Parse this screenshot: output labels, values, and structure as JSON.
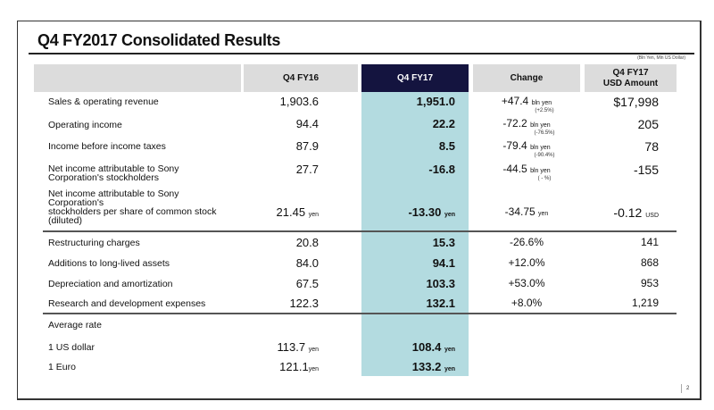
{
  "title": "Q4 FY2017 Consolidated Results",
  "unit_note": "(Bln Yen, Mln US Dollar)",
  "headers": {
    "fy16": "Q4 FY16",
    "fy17": "Q4 FY17",
    "change": "Change",
    "usd_line1": "Q4 FY17",
    "usd_line2": "USD Amount"
  },
  "accent_colors": {
    "header_dark": "#14143f",
    "highlight_column": "#b3dbe0",
    "header_gray": "#dcdcdc"
  },
  "rows": [
    {
      "label": "Sales & operating revenue",
      "fy16": "1,903.6",
      "fy17": "1,951.0",
      "change": "+47.4",
      "change_unit": "bln yen",
      "change_pct": "(+2.5%)",
      "usd": "$17,998"
    },
    {
      "label": "Operating income",
      "fy16": "94.4",
      "fy17": "22.2",
      "change": "-72.2",
      "change_unit": "bln yen",
      "change_pct": "(-76.5%)",
      "usd": "205"
    },
    {
      "label": "Income before income taxes",
      "fy16": "87.9",
      "fy17": "8.5",
      "change": "-79.4",
      "change_unit": "bln yen",
      "change_pct": "(-90.4%)",
      "usd": "78"
    },
    {
      "label1": "Net income attributable to Sony",
      "label2": "Corporation's stockholders",
      "fy16": "27.7",
      "fy17": "-16.8",
      "change": "-44.5",
      "change_unit": "bln yen",
      "change_pct": "( - %)",
      "usd": "-155"
    },
    {
      "label1": "Net income attributable to Sony",
      "label2": "Corporation's",
      "label3": "stockholders per share of common stock",
      "label4": "(diluted)",
      "fy16": "21.45",
      "fy16_unit": "yen",
      "fy17": "-13.30",
      "fy17_unit": "yen",
      "change": "-34.75",
      "change_unit": "yen",
      "usd": "-0.12",
      "usd_unit": "USD"
    }
  ],
  "rows2": [
    {
      "label": "Restructuring charges",
      "fy16": "20.8",
      "fy17": "15.3",
      "change": "-26.6%",
      "usd": "141"
    },
    {
      "label": "Additions to long-lived assets",
      "fy16": "84.0",
      "fy17": "94.1",
      "change": "+12.0%",
      "usd": "868"
    },
    {
      "label": "Depreciation and amortization",
      "fy16": "67.5",
      "fy17": "103.3",
      "change": "+53.0%",
      "usd": "953"
    },
    {
      "label": "Research and development expenses",
      "fy16": "122.3",
      "fy17": "132.1",
      "change": "+8.0%",
      "usd": "1,219"
    }
  ],
  "rates": {
    "heading": "Average rate",
    "items": [
      {
        "label": "1 US dollar",
        "fy16": "113.7",
        "fy17": "108.4",
        "unit": "yen"
      },
      {
        "label": "1 Euro",
        "fy16": "121.1",
        "fy17": "133.2",
        "unit": "yen"
      }
    ]
  },
  "page_number": "2"
}
